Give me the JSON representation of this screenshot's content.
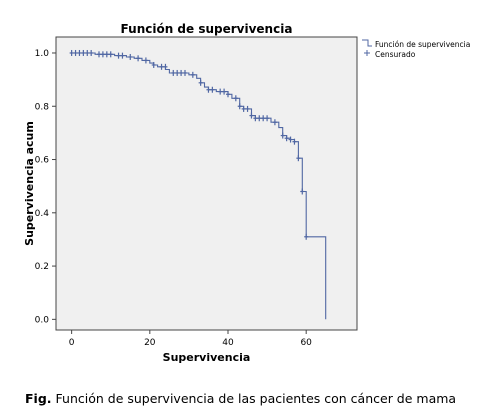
{
  "chart_data": {
    "type": "line",
    "title": "Función de supervivencia",
    "xlabel": "Supervivencia",
    "ylabel": "Supervivencia acum",
    "xlim": [
      -4,
      73
    ],
    "ylim": [
      -0.04,
      1.06
    ],
    "xticks": [
      0,
      20,
      40,
      60
    ],
    "yticks": [
      0.0,
      0.2,
      0.4,
      0.6,
      0.8,
      1.0
    ],
    "ytick_labels": [
      "0.0",
      "0.2",
      "0.4",
      "0.6",
      "0.8",
      "1.0"
    ],
    "grid": false,
    "legend_position": "top-right",
    "series": [
      {
        "name": "Función de supervivencia",
        "kind": "step",
        "x": [
          0,
          6,
          11,
          14,
          16,
          18,
          20,
          21,
          22,
          24,
          25,
          30,
          32,
          33,
          34,
          35,
          37,
          40,
          41,
          43,
          44,
          46,
          47,
          51,
          53,
          54,
          55,
          56,
          57,
          58,
          59,
          60,
          65,
          65
        ],
        "y": [
          1.0,
          0.995,
          0.99,
          0.985,
          0.98,
          0.972,
          0.962,
          0.955,
          0.948,
          0.938,
          0.925,
          0.918,
          0.905,
          0.888,
          0.872,
          0.862,
          0.855,
          0.845,
          0.83,
          0.8,
          0.79,
          0.765,
          0.755,
          0.74,
          0.72,
          0.69,
          0.68,
          0.675,
          0.667,
          0.605,
          0.48,
          0.31,
          0.31,
          0.0
        ]
      },
      {
        "name": "Censurado",
        "kind": "censored",
        "x": [
          0,
          1,
          2,
          3,
          4,
          5,
          7,
          8,
          9,
          10,
          12,
          13,
          15,
          17,
          19,
          21,
          23,
          24,
          26,
          27,
          28,
          29,
          31,
          33,
          35,
          36,
          38,
          39,
          40,
          42,
          43,
          44,
          45,
          46,
          47,
          48,
          49,
          50,
          52,
          54,
          55,
          56,
          57,
          58,
          59,
          60
        ],
        "y": [
          1.0,
          1.0,
          1.0,
          1.0,
          1.0,
          1.0,
          0.995,
          0.995,
          0.995,
          0.995,
          0.99,
          0.99,
          0.985,
          0.98,
          0.972,
          0.955,
          0.948,
          0.948,
          0.925,
          0.925,
          0.925,
          0.925,
          0.918,
          0.888,
          0.862,
          0.862,
          0.855,
          0.855,
          0.845,
          0.83,
          0.8,
          0.79,
          0.79,
          0.765,
          0.755,
          0.755,
          0.755,
          0.755,
          0.74,
          0.69,
          0.68,
          0.675,
          0.667,
          0.605,
          0.48,
          0.31
        ]
      }
    ],
    "colors": {
      "line": "#5067a3",
      "plot_bg": "#f0f0f0",
      "frame": "#444444"
    }
  },
  "caption": {
    "prefix": "Fig.",
    "text": "Función de supervivencia de las pacientes con cáncer de mama"
  }
}
